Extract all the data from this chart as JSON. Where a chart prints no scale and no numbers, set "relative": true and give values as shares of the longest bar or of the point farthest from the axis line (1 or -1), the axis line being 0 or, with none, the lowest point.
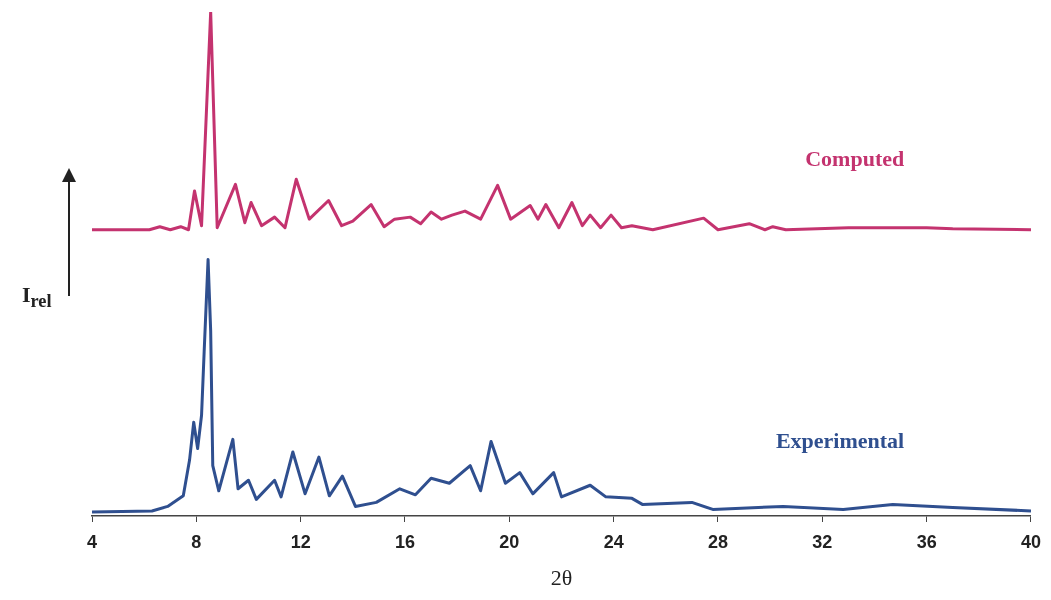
{
  "chart_data": {
    "type": "line",
    "xlabel": "2θ",
    "ylabel": "I$_{rel}$",
    "relative": true,
    "legend": false,
    "grid": false,
    "xlim": [
      4,
      40
    ],
    "xticks": [
      4,
      8,
      12,
      16,
      20,
      24,
      28,
      32,
      36,
      40
    ],
    "series": [
      {
        "name": "Computed",
        "color": "#c4336f",
        "x": [
          4,
          6.2,
          6.6,
          7.0,
          7.4,
          7.7,
          7.93,
          8.2,
          8.55,
          8.8,
          9.5,
          9.86,
          10.1,
          10.5,
          11.0,
          11.4,
          11.83,
          12.33,
          13.07,
          13.57,
          14.0,
          14.7,
          15.2,
          15.6,
          16.2,
          16.6,
          17.0,
          17.4,
          17.8,
          18.3,
          18.9,
          19.55,
          20.05,
          20.8,
          21.1,
          21.4,
          21.9,
          22.4,
          22.8,
          23.1,
          23.5,
          23.9,
          24.3,
          24.7,
          25.5,
          27.45,
          28.0,
          29.2,
          29.8,
          30.1,
          30.6,
          33,
          36,
          37,
          40
        ],
        "values": [
          0.568,
          0.568,
          0.574,
          0.568,
          0.574,
          0.568,
          0.645,
          0.576,
          1.0,
          0.572,
          0.658,
          0.582,
          0.622,
          0.576,
          0.593,
          0.572,
          0.668,
          0.589,
          0.626,
          0.576,
          0.585,
          0.618,
          0.574,
          0.589,
          0.593,
          0.58,
          0.603,
          0.589,
          0.597,
          0.605,
          0.589,
          0.656,
          0.589,
          0.616,
          0.589,
          0.618,
          0.572,
          0.622,
          0.576,
          0.597,
          0.572,
          0.597,
          0.572,
          0.576,
          0.568,
          0.591,
          0.568,
          0.58,
          0.568,
          0.574,
          0.568,
          0.572,
          0.572,
          0.57,
          0.568
        ]
      },
      {
        "name": "Experimental",
        "color": "#2f4f8f",
        "x": [
          4,
          6.3,
          6.9,
          7.5,
          7.74,
          7.9,
          8.05,
          8.2,
          8.3,
          8.45,
          8.55,
          8.63,
          8.86,
          9.4,
          9.6,
          10.0,
          10.3,
          11.0,
          11.25,
          11.7,
          12.17,
          12.7,
          13.1,
          13.6,
          14.1,
          14.9,
          15.8,
          16.4,
          17.0,
          17.7,
          18.5,
          18.9,
          19.3,
          19.85,
          20.4,
          20.9,
          21.7,
          22.0,
          23.1,
          23.7,
          24.7,
          25.1,
          27.0,
          27.8,
          30.5,
          32.8,
          34.7,
          37,
          40
        ],
        "values": [
          0.008,
          0.01,
          0.019,
          0.04,
          0.111,
          0.186,
          0.134,
          0.2,
          0.326,
          0.509,
          0.367,
          0.1,
          0.05,
          0.152,
          0.054,
          0.071,
          0.033,
          0.071,
          0.038,
          0.127,
          0.044,
          0.117,
          0.04,
          0.079,
          0.019,
          0.027,
          0.054,
          0.042,
          0.075,
          0.065,
          0.1,
          0.05,
          0.148,
          0.065,
          0.086,
          0.044,
          0.086,
          0.038,
          0.061,
          0.038,
          0.035,
          0.023,
          0.027,
          0.013,
          0.019,
          0.013,
          0.023,
          0.017,
          0.01
        ]
      }
    ]
  }
}
